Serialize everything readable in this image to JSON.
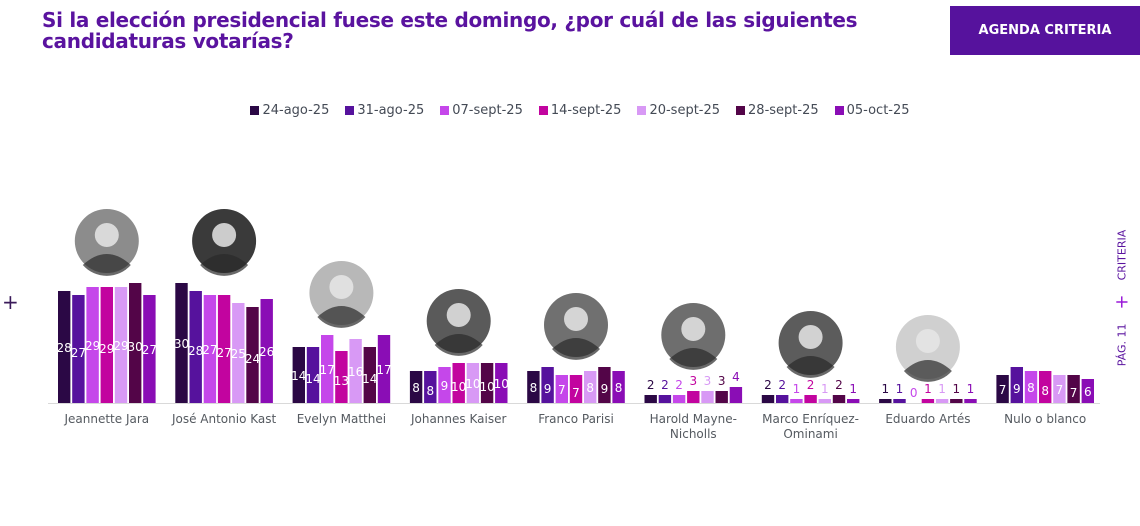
{
  "header": {
    "title_line1": "Si la elección presidencial fuese este domingo, ¿por cuál de las siguientes",
    "title_line2": "candidaturas votarías?",
    "agenda_button": "AGENDA CRITERIA"
  },
  "side": {
    "left_plus": "+",
    "brand": "CRITERIA",
    "plus": "+",
    "page": "PÁG. 11"
  },
  "chart_data": {
    "type": "bar",
    "title": "Si la elección presidencial fuese este domingo, ¿por cuál de las siguientes candidaturas votarías?",
    "xlabel": "",
    "ylabel": "",
    "legend_position": "top-center",
    "grid": false,
    "categories": [
      "Jeannette Jara",
      "José Antonio Kast",
      "Evelyn Matthei",
      "Johannes Kaiser",
      "Franco Parisi",
      "Harold Mayne-Nicholls",
      "Marco Enríquez-Ominami",
      "Eduardo Artés",
      "Nulo o blanco"
    ],
    "category_lines": [
      [
        "Jeannette Jara"
      ],
      [
        "José Antonio Kast"
      ],
      [
        "Evelyn Matthei"
      ],
      [
        "Johannes Kaiser"
      ],
      [
        "Franco Parisi"
      ],
      [
        "Harold Mayne-",
        "Nicholls"
      ],
      [
        "Marco Enríquez-",
        "Ominami"
      ],
      [
        "Eduardo Artés"
      ],
      [
        "Nulo o blanco"
      ]
    ],
    "has_photo": [
      true,
      true,
      true,
      true,
      true,
      true,
      true,
      true,
      false
    ],
    "series": [
      {
        "name": "24-ago-25",
        "color": "#2b0845",
        "values": [
          28,
          30,
          14,
          8,
          8,
          2,
          2,
          1,
          7
        ]
      },
      {
        "name": "31-ago-25",
        "color": "#56129d",
        "values": [
          27,
          28,
          14,
          8,
          9,
          2,
          2,
          1,
          9
        ]
      },
      {
        "name": "07-sept-25",
        "color": "#c547ea",
        "values": [
          29,
          27,
          17,
          9,
          7,
          2,
          1,
          0,
          8
        ]
      },
      {
        "name": "14-sept-25",
        "color": "#c2049f",
        "values": [
          29,
          27,
          13,
          10,
          7,
          3,
          2,
          1,
          8
        ]
      },
      {
        "name": "20-sept-25",
        "color": "#d899f5",
        "values": [
          29,
          25,
          16,
          10,
          8,
          3,
          1,
          1,
          7
        ]
      },
      {
        "name": "28-sept-25",
        "color": "#530548",
        "values": [
          30,
          24,
          14,
          10,
          9,
          3,
          2,
          1,
          7
        ]
      },
      {
        "name": "05-oct-25",
        "color": "#8a0db5",
        "values": [
          27,
          26,
          17,
          10,
          8,
          4,
          1,
          1,
          6
        ]
      }
    ],
    "ylim": [
      0,
      30
    ]
  }
}
